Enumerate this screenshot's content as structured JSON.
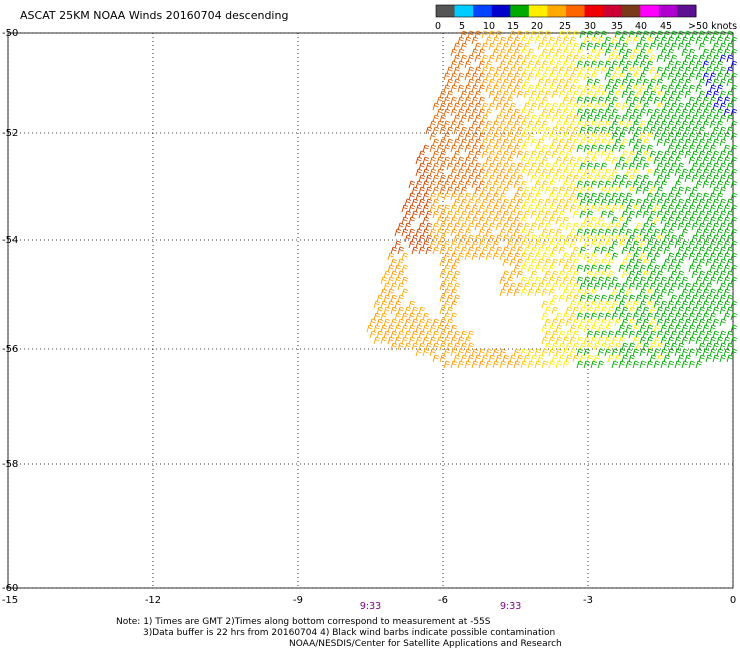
{
  "title": "ASCAT 25KM NOAA Winds 20160704 descending",
  "legend": {
    "labels": [
      "0",
      "5",
      "10",
      "15",
      "20",
      "25",
      "30",
      "35",
      "40",
      "45",
      ">50 knots"
    ],
    "colors": [
      "#555555",
      "#00ccff",
      "#0044ff",
      "#0000cc",
      "#00aa00",
      "#ffee00",
      "#ffaa00",
      "#ff6600",
      "#ee0000",
      "#cc0033",
      "#7a3a1a",
      "#ff00ff",
      "#b000d0",
      "#5a1090"
    ]
  },
  "map": {
    "lat_labels": [
      "-50",
      "-52",
      "-54",
      "-56",
      "-58",
      "-60"
    ],
    "lon_labels": [
      "-15",
      "-12",
      "-9",
      "-6",
      "-3",
      "0"
    ],
    "lat_range": [
      -60,
      -50
    ],
    "lon_range": [
      -15,
      0
    ],
    "grid": "dotted",
    "time_labels": [
      {
        "text": "9:33",
        "lon": -7.5
      },
      {
        "text": "9:33",
        "lon": -4.6
      }
    ]
  },
  "notes": {
    "line1": "Note: 1) Times are GMT 2)Times along bottom correspond to measurement at -55S",
    "line2": "3)Data buffer is 22 hrs from 20160704 4) Black wind barbs indicate possible contamination",
    "line3": "NOAA/NESDIS/Center for Satellite Applications and Research"
  }
}
